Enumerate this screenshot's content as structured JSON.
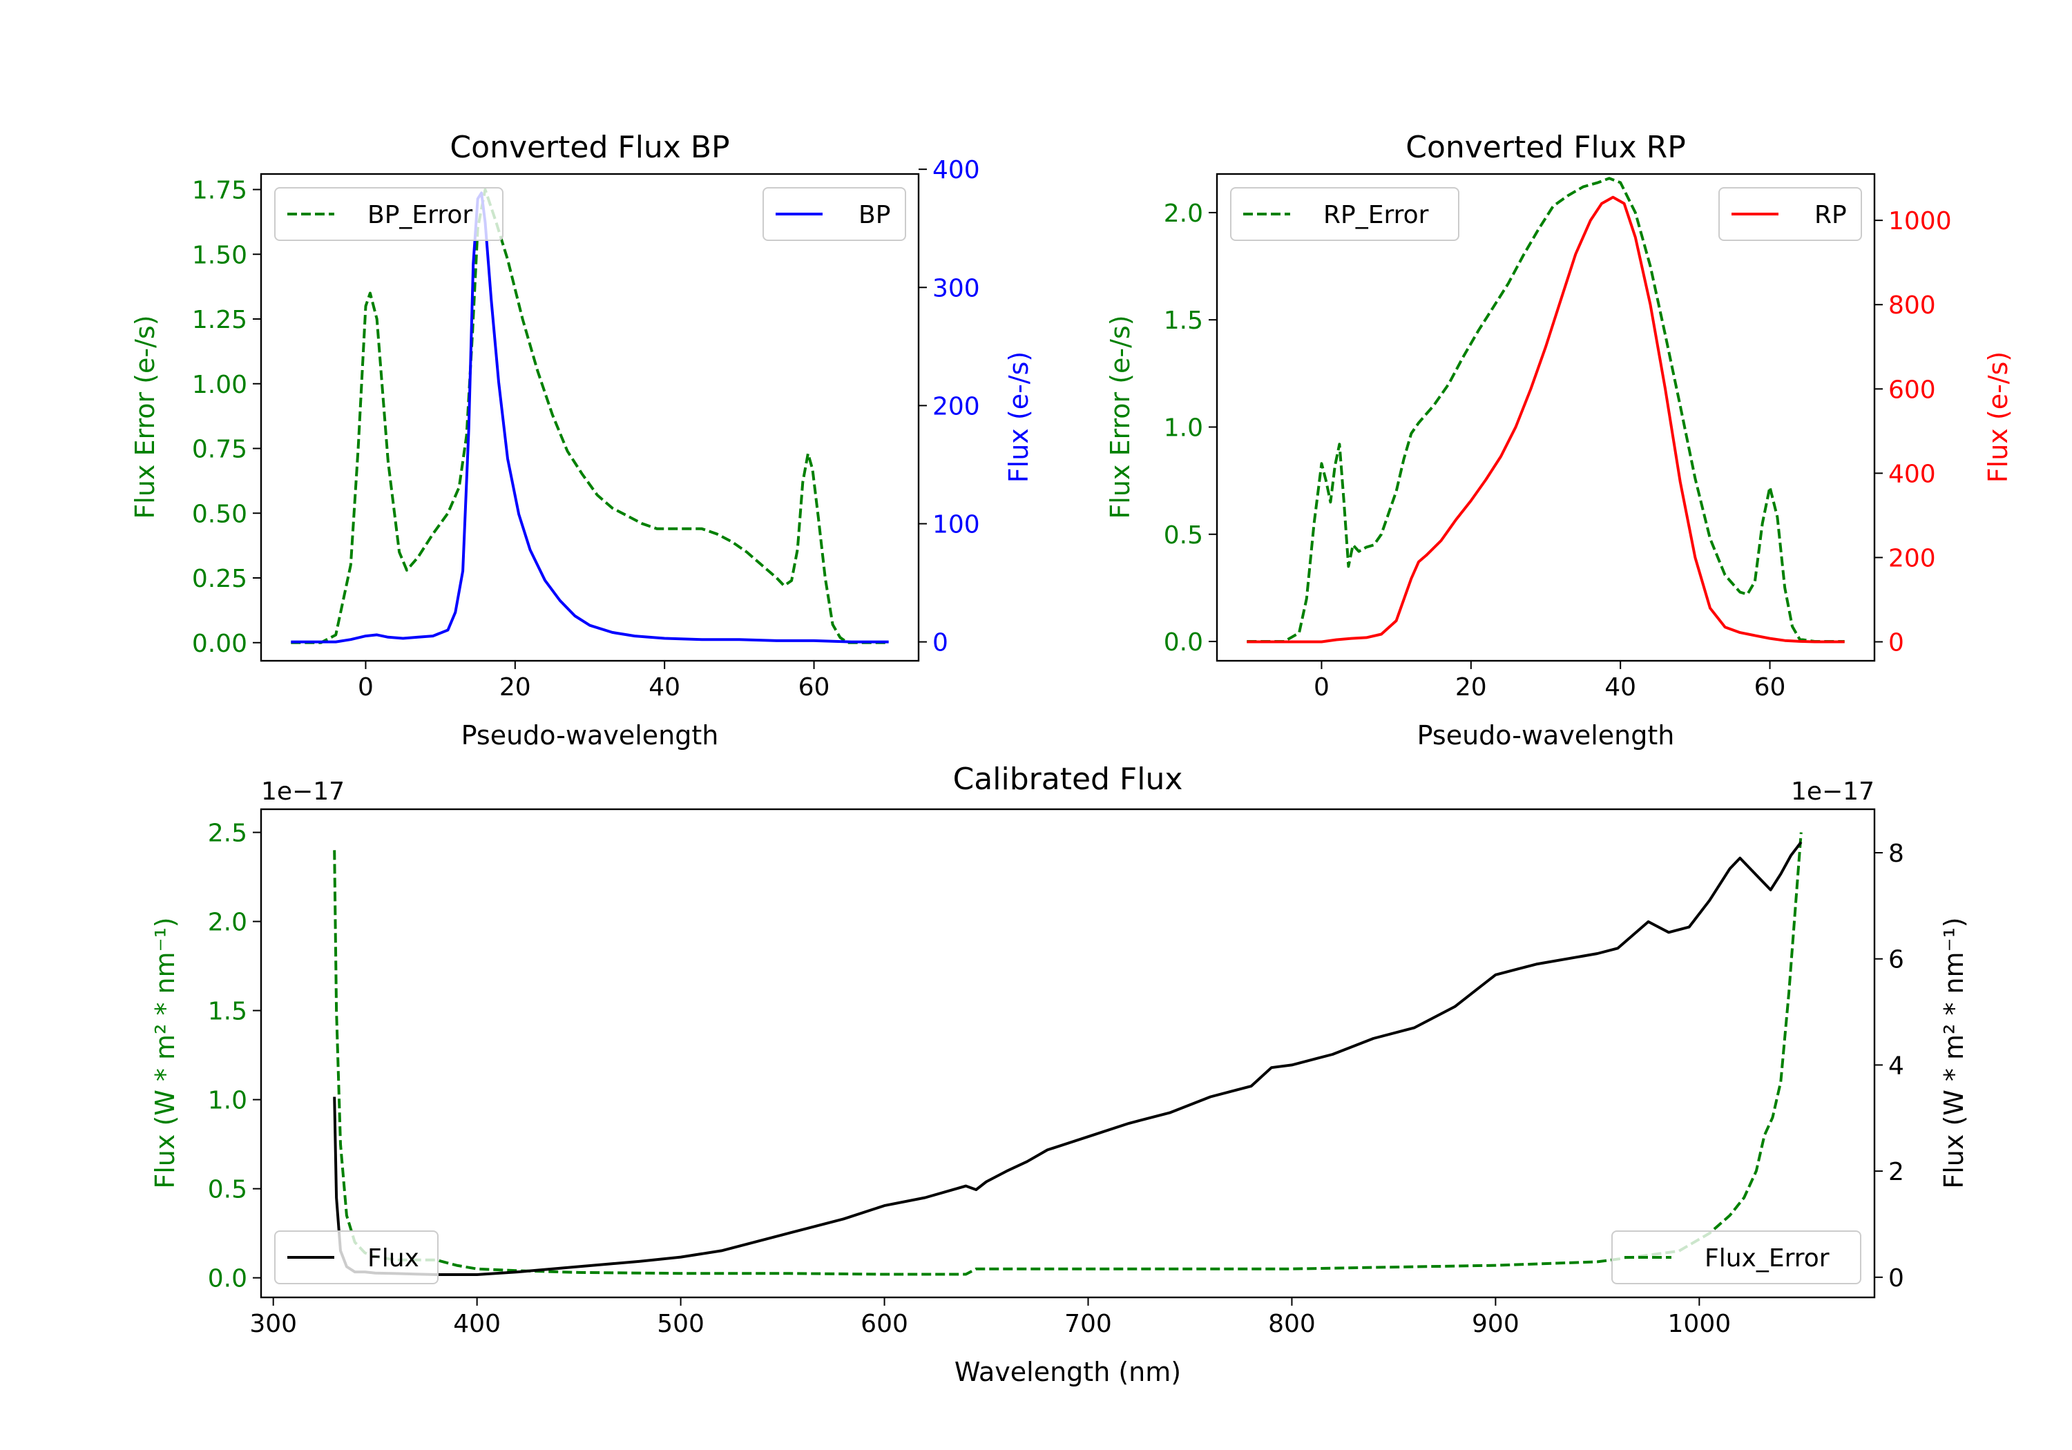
{
  "colors": {
    "error": "#008000",
    "bp": "#0000ff",
    "rp": "#ff0000",
    "flux": "#000000",
    "axes": "#000000"
  },
  "chart_data": [
    {
      "type": "line",
      "id": "bp",
      "title": "Converted Flux BP",
      "xlabel": "Pseudo-wavelength",
      "ylabel_left": "Flux Error (e-/s)",
      "ylabel_right": "Flux (e-/s)",
      "xlim": [
        -14,
        74
      ],
      "ylim_left": [
        -0.07,
        1.81
      ],
      "ylim_right": [
        -16,
        396
      ],
      "xticks": [
        0,
        20,
        40,
        60
      ],
      "xtick_labels": [
        "0",
        "20",
        "40",
        "60"
      ],
      "yticks_left": [
        0,
        0.25,
        0.5,
        0.75,
        1.0,
        1.25,
        1.5,
        1.75
      ],
      "ytick_labels_left": [
        "0.00",
        "0.25",
        "0.50",
        "0.75",
        "1.00",
        "1.25",
        "1.50",
        "1.75"
      ],
      "yticks_right": [
        0,
        100,
        200,
        300,
        400
      ],
      "ytick_labels_right": [
        "0",
        "100",
        "200",
        "300",
        "400"
      ],
      "legend_left": "top-left",
      "legend_right": "top-right",
      "series": [
        {
          "name": "BP_Error",
          "axis": "left",
          "style": "dashed",
          "color": "#008000",
          "x": [
            -10,
            -6,
            -4,
            -2,
            -1,
            0,
            0.6,
            1.5,
            3,
            4.5,
            5.5,
            7,
            9,
            11,
            12.5,
            13.5,
            14.3,
            15,
            16,
            17.5,
            19,
            21,
            23,
            25,
            27,
            29,
            31,
            33,
            35,
            37,
            39,
            41,
            43,
            45,
            47,
            49,
            51,
            53,
            55,
            56,
            57,
            57.8,
            58.5,
            59.2,
            59.8,
            60.6,
            61.5,
            62.5,
            63.5,
            64.5,
            66,
            70
          ],
          "y": [
            0.0,
            0.0,
            0.03,
            0.3,
            0.75,
            1.3,
            1.35,
            1.25,
            0.7,
            0.35,
            0.28,
            0.33,
            0.42,
            0.5,
            0.6,
            0.8,
            1.2,
            1.6,
            1.75,
            1.62,
            1.48,
            1.25,
            1.05,
            0.88,
            0.74,
            0.65,
            0.57,
            0.52,
            0.49,
            0.46,
            0.44,
            0.44,
            0.44,
            0.44,
            0.42,
            0.39,
            0.35,
            0.3,
            0.25,
            0.22,
            0.24,
            0.36,
            0.62,
            0.73,
            0.67,
            0.48,
            0.25,
            0.07,
            0.02,
            0.0,
            0.0,
            0.0
          ]
        },
        {
          "name": "BP",
          "axis": "right",
          "style": "solid",
          "color": "#0000ff",
          "x": [
            -10,
            -4,
            -2,
            0,
            1.5,
            3,
            5,
            7,
            9,
            11,
            12,
            13,
            13.8,
            14.4,
            15,
            15.5,
            16,
            16.8,
            17.8,
            19,
            20.5,
            22,
            24,
            26,
            28,
            30,
            33,
            36,
            40,
            45,
            50,
            55,
            60,
            65,
            70
          ],
          "y": [
            0,
            0,
            2,
            5,
            6,
            4,
            3,
            4,
            5,
            10,
            25,
            60,
            180,
            320,
            375,
            380,
            355,
            290,
            220,
            155,
            108,
            78,
            52,
            35,
            22,
            14,
            8,
            5,
            3,
            2,
            2,
            1,
            1,
            0,
            0
          ]
        }
      ]
    },
    {
      "type": "line",
      "id": "rp",
      "title": "Converted Flux RP",
      "xlabel": "Pseudo-wavelength",
      "ylabel_left": "Flux Error (e-/s)",
      "ylabel_right": "Flux (e-/s)",
      "xlim": [
        -14,
        74
      ],
      "ylim_left": [
        -0.09,
        2.18
      ],
      "ylim_right": [
        -45,
        1110
      ],
      "xticks": [
        0,
        20,
        40,
        60
      ],
      "xtick_labels": [
        "0",
        "20",
        "40",
        "60"
      ],
      "yticks_left": [
        0,
        0.5,
        1.0,
        1.5,
        2.0
      ],
      "ytick_labels_left": [
        "0.0",
        "0.5",
        "1.0",
        "1.5",
        "2.0"
      ],
      "yticks_right": [
        0,
        200,
        400,
        600,
        800,
        1000
      ],
      "ytick_labels_right": [
        "0",
        "200",
        "400",
        "600",
        "800",
        "1000"
      ],
      "legend_left": "top-left",
      "legend_right": "top-right",
      "series": [
        {
          "name": "RP_Error",
          "axis": "left",
          "style": "dashed",
          "color": "#008000",
          "x": [
            -10,
            -5,
            -3,
            -2,
            -1,
            0,
            0.6,
            1.2,
            1.8,
            2.4,
            3,
            3.6,
            4.2,
            5,
            6,
            7,
            8,
            9,
            10,
            11,
            12,
            13,
            15,
            17,
            19,
            21,
            23,
            25,
            27,
            29,
            31,
            33,
            35,
            37,
            38.5,
            40,
            42,
            44,
            46,
            48,
            50,
            52,
            54,
            56,
            57,
            58,
            59,
            60,
            61,
            62,
            63,
            64,
            66,
            70
          ],
          "y": [
            0.0,
            0.0,
            0.04,
            0.2,
            0.55,
            0.83,
            0.75,
            0.65,
            0.82,
            0.92,
            0.65,
            0.35,
            0.45,
            0.42,
            0.44,
            0.45,
            0.5,
            0.6,
            0.7,
            0.85,
            0.97,
            1.02,
            1.1,
            1.2,
            1.33,
            1.45,
            1.56,
            1.67,
            1.8,
            1.92,
            2.03,
            2.08,
            2.12,
            2.14,
            2.16,
            2.14,
            2.0,
            1.75,
            1.43,
            1.1,
            0.76,
            0.48,
            0.31,
            0.23,
            0.22,
            0.28,
            0.55,
            0.72,
            0.58,
            0.25,
            0.07,
            0.01,
            0.0,
            0.0
          ]
        },
        {
          "name": "RP",
          "axis": "right",
          "style": "solid",
          "color": "#ff0000",
          "x": [
            -10,
            -3,
            0,
            2,
            4,
            6,
            8,
            10,
            12,
            13,
            14,
            16,
            18,
            20,
            22,
            24,
            26,
            28,
            30,
            32,
            34,
            36,
            37.5,
            39,
            40.5,
            42,
            44,
            46,
            48,
            50,
            52,
            54,
            56,
            58,
            60,
            62,
            64,
            66,
            70
          ],
          "y": [
            0,
            0,
            0,
            5,
            8,
            10,
            18,
            50,
            150,
            190,
            205,
            240,
            290,
            335,
            385,
            440,
            510,
            600,
            700,
            810,
            920,
            1000,
            1040,
            1055,
            1040,
            960,
            800,
            600,
            380,
            200,
            80,
            35,
            22,
            15,
            8,
            3,
            1,
            0,
            0
          ]
        }
      ]
    },
    {
      "type": "line",
      "id": "calibrated",
      "title": "Calibrated Flux",
      "xlabel": "Wavelength (nm)",
      "ylabel_left": "Flux (W * m² * nm⁻¹)",
      "ylabel_right": "Flux (W * m² * nm⁻¹)",
      "offset_left": "1e−17",
      "offset_right": "1e−17",
      "xlim": [
        294,
        1086
      ],
      "ylim_left": [
        -0.11,
        2.63
      ],
      "ylim_right": [
        -0.38,
        8.82
      ],
      "xticks": [
        300,
        400,
        500,
        600,
        700,
        800,
        900,
        1000
      ],
      "xtick_labels": [
        "300",
        "400",
        "500",
        "600",
        "700",
        "800",
        "900",
        "1000"
      ],
      "yticks_left": [
        0,
        0.5,
        1.0,
        1.5,
        2.0,
        2.5
      ],
      "ytick_labels_left": [
        "0.0",
        "0.5",
        "1.0",
        "1.5",
        "2.0",
        "2.5"
      ],
      "yticks_right": [
        0,
        2,
        4,
        6,
        8
      ],
      "ytick_labels_right": [
        "0",
        "2",
        "4",
        "6",
        "8"
      ],
      "legend_left": "lower-left",
      "legend_right": "lower-right",
      "series": [
        {
          "name": "Flux_Error",
          "axis": "left",
          "style": "dashed",
          "color": "#008000",
          "x": [
            330,
            331,
            333,
            336,
            340,
            345,
            350,
            360,
            370,
            380,
            390,
            400,
            420,
            450,
            500,
            550,
            600,
            640,
            645,
            700,
            750,
            800,
            850,
            900,
            950,
            990,
            1005,
            1015,
            1022,
            1028,
            1032,
            1036,
            1040,
            1044,
            1048,
            1050
          ],
          "y": [
            2.4,
            1.5,
            0.75,
            0.35,
            0.2,
            0.14,
            0.12,
            0.1,
            0.1,
            0.1,
            0.07,
            0.05,
            0.04,
            0.03,
            0.025,
            0.025,
            0.02,
            0.02,
            0.05,
            0.05,
            0.05,
            0.05,
            0.06,
            0.07,
            0.09,
            0.15,
            0.25,
            0.35,
            0.45,
            0.6,
            0.8,
            0.9,
            1.1,
            1.6,
            2.2,
            2.5
          ]
        },
        {
          "name": "Flux",
          "axis": "right",
          "style": "solid",
          "color": "#000000",
          "x": [
            330,
            331,
            333,
            336,
            340,
            345,
            350,
            360,
            370,
            380,
            390,
            400,
            420,
            450,
            480,
            500,
            520,
            550,
            580,
            600,
            620,
            640,
            645,
            650,
            660,
            670,
            680,
            700,
            720,
            740,
            760,
            780,
            790,
            800,
            820,
            840,
            860,
            880,
            890,
            900,
            910,
            920,
            950,
            960,
            975,
            985,
            995,
            1005,
            1015,
            1020,
            1025,
            1035,
            1040,
            1045,
            1050
          ],
          "y": [
            3.4,
            1.5,
            0.5,
            0.2,
            0.1,
            0.1,
            0.08,
            0.07,
            0.06,
            0.05,
            0.05,
            0.05,
            0.1,
            0.2,
            0.3,
            0.38,
            0.5,
            0.8,
            1.1,
            1.35,
            1.5,
            1.72,
            1.65,
            1.8,
            2.0,
            2.18,
            2.4,
            2.65,
            2.9,
            3.1,
            3.4,
            3.6,
            3.95,
            4.0,
            4.2,
            4.5,
            4.7,
            5.1,
            5.4,
            5.7,
            5.8,
            5.9,
            6.1,
            6.2,
            6.7,
            6.5,
            6.6,
            7.1,
            7.7,
            7.9,
            7.7,
            7.3,
            7.6,
            7.95,
            8.2
          ]
        }
      ]
    }
  ]
}
